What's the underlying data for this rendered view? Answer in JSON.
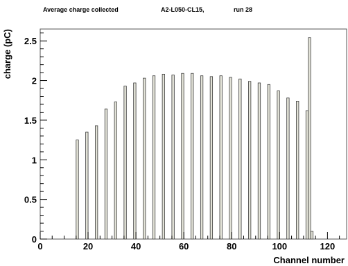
{
  "chart_data": {
    "type": "bar",
    "title_parts": [
      "Average charge collected",
      "A2-L050-CL15,",
      "run 28"
    ],
    "xlabel": "Channel number",
    "ylabel": "charge (pC)",
    "xlim": [
      0,
      128
    ],
    "ylim": [
      0,
      2.65
    ],
    "xticks": [
      0,
      20,
      40,
      60,
      80,
      100,
      120
    ],
    "yticks": [
      0,
      0.5,
      1,
      1.5,
      2,
      2.5
    ],
    "ytick_labels": [
      "0",
      "0.5",
      "1",
      "1.5",
      "2",
      "2.5"
    ],
    "grid": false,
    "x": [
      15,
      19,
      23,
      27,
      31,
      35,
      39,
      43,
      47,
      51,
      55,
      59,
      63,
      67,
      71,
      75,
      79,
      83,
      87,
      91,
      95,
      99,
      103,
      107,
      111,
      112,
      113
    ],
    "values": [
      1.25,
      1.35,
      1.43,
      1.64,
      1.73,
      1.93,
      1.97,
      2.03,
      2.06,
      2.08,
      2.07,
      2.09,
      2.09,
      2.06,
      2.05,
      2.06,
      2.04,
      2.02,
      1.99,
      1.97,
      1.95,
      1.87,
      1.78,
      1.74,
      1.62,
      2.54,
      0.1
    ]
  }
}
